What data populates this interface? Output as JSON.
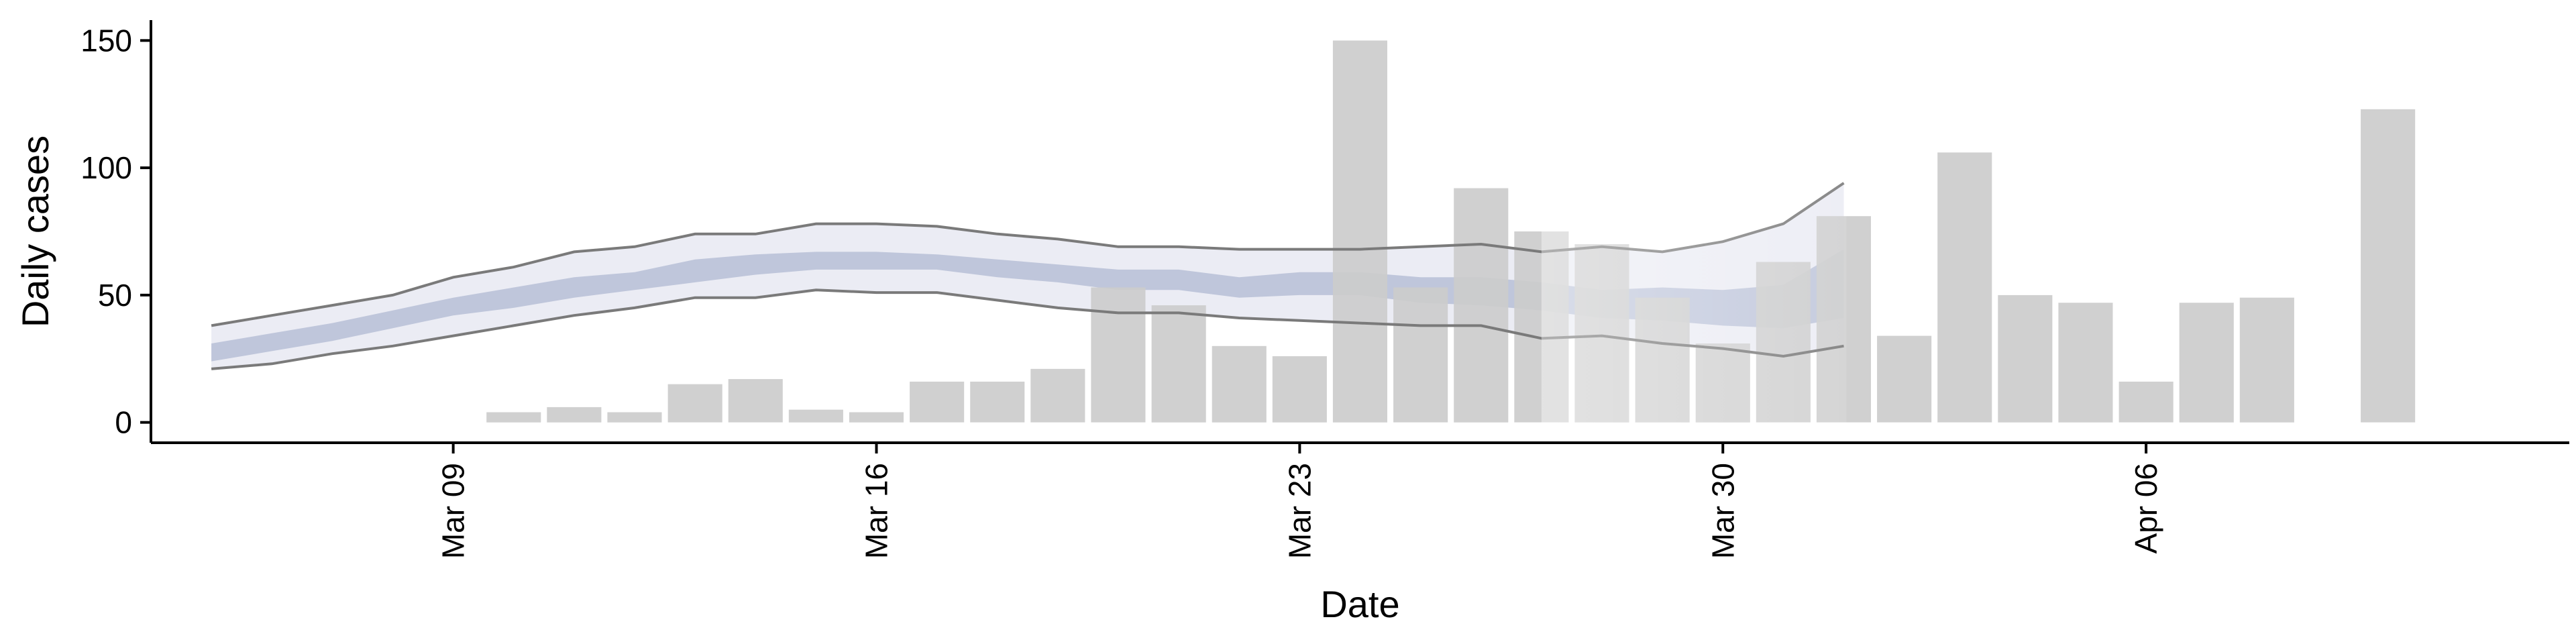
{
  "chart_data": {
    "type": "bar",
    "xlabel": "Date",
    "ylabel": "Daily cases",
    "ylim": [
      -8,
      158
    ],
    "yticks": [
      0,
      50,
      100,
      150
    ],
    "xticks": [
      {
        "date": "2020-03-09",
        "label": "Mar 09"
      },
      {
        "date": "2020-03-16",
        "label": "Mar 16"
      },
      {
        "date": "2020-03-23",
        "label": "Mar 23"
      },
      {
        "date": "2020-03-30",
        "label": "Mar 30"
      },
      {
        "date": "2020-04-06",
        "label": "Apr 06"
      }
    ],
    "xlim": [
      "2020-03-04",
      "2020-04-13"
    ],
    "grid": false,
    "legend": "none",
    "bars": {
      "name": "Daily cases",
      "color": "#cccccc",
      "x": [
        "2020-03-10",
        "2020-03-11",
        "2020-03-12",
        "2020-03-13",
        "2020-03-14",
        "2020-03-15",
        "2020-03-16",
        "2020-03-17",
        "2020-03-18",
        "2020-03-19",
        "2020-03-20",
        "2020-03-21",
        "2020-03-22",
        "2020-03-23",
        "2020-03-24",
        "2020-03-25",
        "2020-03-26",
        "2020-03-27",
        "2020-03-28",
        "2020-03-29",
        "2020-03-30",
        "2020-03-31",
        "2020-04-01",
        "2020-04-02",
        "2020-04-03",
        "2020-04-04",
        "2020-04-05",
        "2020-04-06",
        "2020-04-07",
        "2020-04-08",
        "2020-04-10"
      ],
      "values": [
        4,
        6,
        4,
        15,
        17,
        5,
        4,
        16,
        16,
        21,
        53,
        46,
        30,
        26,
        150,
        53,
        92,
        75,
        70,
        49,
        31,
        63,
        81,
        34,
        106,
        50,
        47,
        16,
        47,
        49,
        123
      ]
    },
    "estimate": {
      "x": [
        "2020-03-05",
        "2020-03-06",
        "2020-03-07",
        "2020-03-08",
        "2020-03-09",
        "2020-03-10",
        "2020-03-11",
        "2020-03-12",
        "2020-03-13",
        "2020-03-14",
        "2020-03-15",
        "2020-03-16",
        "2020-03-17",
        "2020-03-18",
        "2020-03-19",
        "2020-03-20",
        "2020-03-21",
        "2020-03-22",
        "2020-03-23",
        "2020-03-24",
        "2020-03-25",
        "2020-03-26",
        "2020-03-27",
        "2020-03-28",
        "2020-03-29",
        "2020-03-30",
        "2020-03-31",
        "2020-04-01"
      ],
      "upper90": [
        38,
        42,
        46,
        50,
        57,
        61,
        67,
        69,
        74,
        74,
        78,
        78,
        77,
        74,
        72,
        69,
        69,
        68,
        68,
        68,
        69,
        70,
        67,
        69,
        67,
        71,
        78,
        94
      ],
      "lower90": [
        21,
        23,
        27,
        30,
        34,
        38,
        42,
        45,
        49,
        49,
        52,
        51,
        51,
        48,
        45,
        43,
        43,
        41,
        40,
        39,
        38,
        38,
        33,
        34,
        31,
        29,
        26,
        30
      ],
      "upper50": [
        31,
        35,
        39,
        44,
        49,
        53,
        57,
        59,
        64,
        66,
        67,
        67,
        66,
        64,
        62,
        60,
        60,
        57,
        59,
        59,
        57,
        57,
        55,
        52,
        53,
        52,
        54,
        68
      ],
      "lower50": [
        24,
        28,
        32,
        37,
        42,
        45,
        49,
        52,
        55,
        58,
        60,
        60,
        60,
        57,
        55,
        52,
        52,
        49,
        50,
        50,
        47,
        46,
        44,
        41,
        40,
        38,
        37,
        41
      ],
      "band_color": "#b7bfd6",
      "outer_band_color": "#e7e9f2",
      "line_color": "#7a7a7a"
    }
  }
}
